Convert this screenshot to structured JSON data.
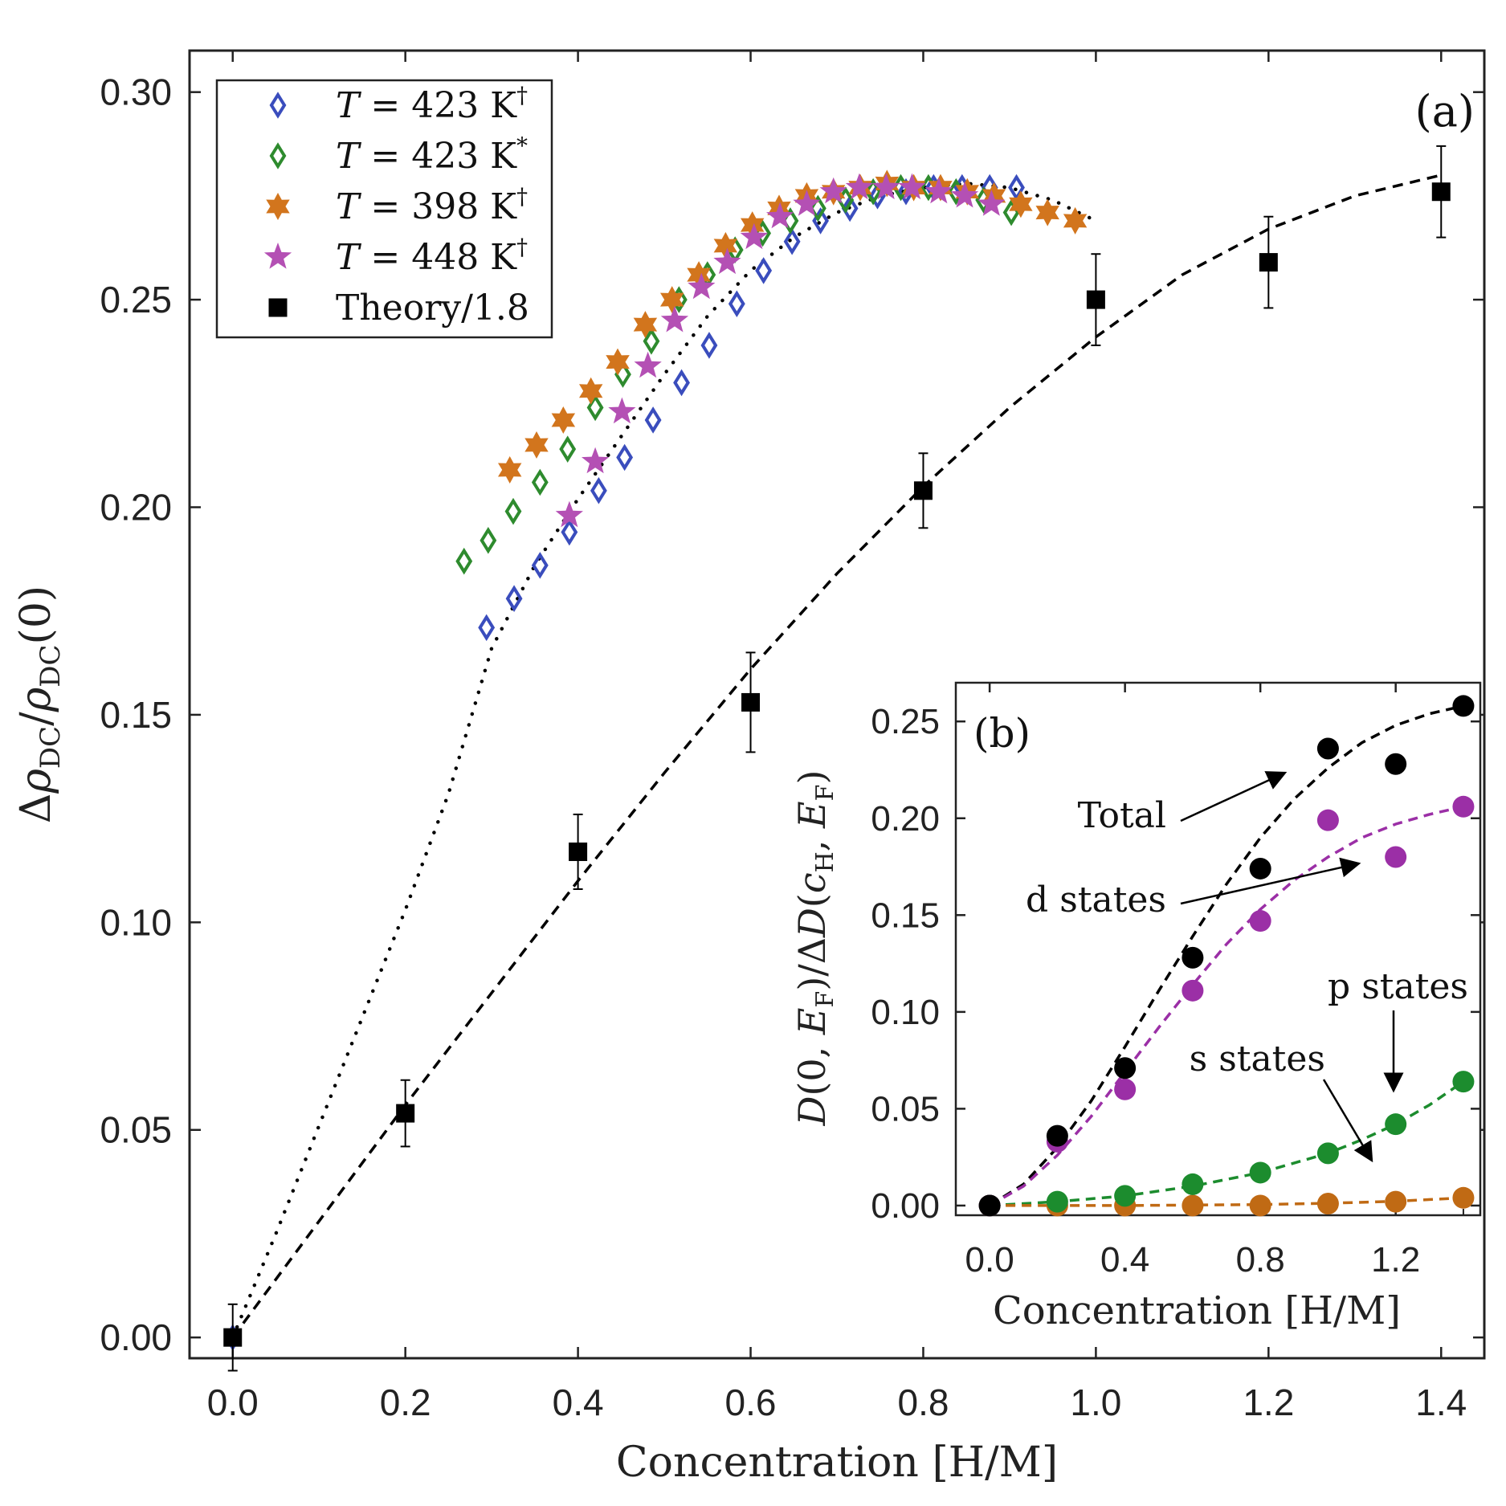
{
  "chart_data": [
    {
      "panel": "(a)",
      "type": "scatter",
      "xlabel": "Concentration [H/M]",
      "ylabel": "Δρ_DC/ρ_DC(0)",
      "xlim": [
        -0.05,
        1.45
      ],
      "ylim": [
        -0.005,
        0.31
      ],
      "xticks": [
        "0.0",
        "0.2",
        "0.4",
        "0.6",
        "0.8",
        "1.0",
        "1.2",
        "1.4"
      ],
      "yticks": [
        "0.00",
        "0.05",
        "0.10",
        "0.15",
        "0.20",
        "0.25",
        "0.30"
      ],
      "legend_position": "top-left",
      "series": [
        {
          "name": "T = 423 K†",
          "legend_main": "T = 423 K",
          "legend_sup": "†",
          "marker": "diamond-open",
          "color": "#3a4dbd",
          "x": [
            0.0,
            0.294,
            0.326,
            0.356,
            0.39,
            0.424,
            0.454,
            0.487,
            0.52,
            0.552,
            0.584,
            0.615,
            0.648,
            0.681,
            0.715,
            0.747,
            0.78,
            0.812,
            0.845,
            0.877,
            0.908
          ],
          "y": [
            0.0,
            0.171,
            0.178,
            0.186,
            0.194,
            0.204,
            0.212,
            0.221,
            0.23,
            0.239,
            0.249,
            0.257,
            0.264,
            0.269,
            0.272,
            0.275,
            0.276,
            0.277,
            0.277,
            0.277,
            0.277
          ]
        },
        {
          "name": "T = 423 K*",
          "legend_main": "T = 423 K",
          "legend_sup": "*",
          "marker": "diamond-open",
          "color": "#2e8b2e",
          "x": [
            0.268,
            0.296,
            0.325,
            0.356,
            0.388,
            0.42,
            0.452,
            0.485,
            0.517,
            0.55,
            0.582,
            0.614,
            0.646,
            0.678,
            0.71,
            0.742,
            0.774,
            0.806,
            0.838,
            0.87,
            0.902
          ],
          "y": [
            0.187,
            0.192,
            0.199,
            0.206,
            0.214,
            0.224,
            0.232,
            0.24,
            0.25,
            0.256,
            0.262,
            0.266,
            0.269,
            0.272,
            0.274,
            0.276,
            0.277,
            0.277,
            0.276,
            0.274,
            0.271
          ]
        },
        {
          "name": "T = 398 K†",
          "legend_main": "T = 398 K",
          "legend_sup": "†",
          "marker": "hexagram",
          "color": "#d2751d",
          "x": [
            0.321,
            0.352,
            0.383,
            0.415,
            0.446,
            0.478,
            0.509,
            0.54,
            0.571,
            0.602,
            0.633,
            0.665,
            0.696,
            0.727,
            0.758,
            0.789,
            0.82,
            0.851,
            0.882,
            0.913,
            0.944,
            0.976
          ],
          "y": [
            0.209,
            0.215,
            0.221,
            0.228,
            0.235,
            0.244,
            0.25,
            0.256,
            0.263,
            0.268,
            0.272,
            0.275,
            0.276,
            0.277,
            0.278,
            0.277,
            0.277,
            0.276,
            0.275,
            0.273,
            0.271,
            0.269
          ]
        },
        {
          "name": "T = 448 K†",
          "legend_main": "T = 448 K",
          "legend_sup": "†",
          "marker": "star",
          "color": "#b450b4",
          "x": [
            0.39,
            0.42,
            0.451,
            0.481,
            0.512,
            0.543,
            0.573,
            0.604,
            0.634,
            0.665,
            0.696,
            0.726,
            0.757,
            0.787,
            0.818,
            0.848,
            0.879
          ],
          "y": [
            0.198,
            0.211,
            0.223,
            0.234,
            0.245,
            0.253,
            0.259,
            0.265,
            0.27,
            0.273,
            0.276,
            0.277,
            0.277,
            0.277,
            0.276,
            0.275,
            0.273
          ]
        },
        {
          "name": "Theory/1.8",
          "legend_main": "Theory/1.8",
          "legend_sup": "",
          "marker": "square-filled",
          "color": "#000000",
          "x": [
            0.0,
            0.2,
            0.4,
            0.6,
            0.8,
            1.0,
            1.2,
            1.4
          ],
          "y": [
            0.0,
            0.054,
            0.117,
            0.153,
            0.204,
            0.25,
            0.259,
            0.276
          ],
          "yerr": [
            0.008,
            0.008,
            0.009,
            0.012,
            0.009,
            0.011,
            0.011,
            0.011
          ]
        }
      ],
      "fits": [
        {
          "name": "dotted fit (experiment)",
          "style": "dotted",
          "color": "#000000",
          "x": [
            0.0,
            0.05,
            0.1,
            0.15,
            0.2,
            0.25,
            0.3,
            0.35,
            0.4,
            0.45,
            0.5,
            0.55,
            0.6,
            0.65,
            0.7,
            0.75,
            0.8,
            0.85,
            0.9,
            0.95,
            1.0
          ],
          "y": [
            0.0,
            0.025,
            0.051,
            0.077,
            0.103,
            0.131,
            0.166,
            0.186,
            0.202,
            0.217,
            0.232,
            0.246,
            0.257,
            0.265,
            0.271,
            0.275,
            0.277,
            0.278,
            0.277,
            0.274,
            0.269
          ]
        },
        {
          "name": "dashed fit (theory)",
          "style": "dashed",
          "color": "#000000",
          "x": [
            0.0,
            0.1,
            0.2,
            0.3,
            0.4,
            0.5,
            0.6,
            0.7,
            0.8,
            0.9,
            1.0,
            1.1,
            1.2,
            1.3,
            1.4
          ],
          "y": [
            0.0,
            0.028,
            0.056,
            0.083,
            0.11,
            0.136,
            0.161,
            0.184,
            0.205,
            0.224,
            0.241,
            0.256,
            0.267,
            0.275,
            0.28
          ]
        }
      ]
    },
    {
      "panel": "(b)",
      "type": "scatter",
      "xlabel": "Concentration [H/M]",
      "ylabel": "D(0, E_F)/ΔD(c_H, E_F)",
      "xlim": [
        -0.1,
        1.45
      ],
      "ylim": [
        -0.005,
        0.27
      ],
      "xticks": [
        "0.0",
        "0.4",
        "0.8",
        "1.2"
      ],
      "yticks": [
        "0.00",
        "0.05",
        "0.10",
        "0.15",
        "0.20",
        "0.25"
      ],
      "series": [
        {
          "name": "Total",
          "color": "#000000",
          "x": [
            0.0,
            0.2,
            0.4,
            0.6,
            0.8,
            1.0,
            1.2,
            1.4
          ],
          "y": [
            0.0,
            0.036,
            0.071,
            0.128,
            0.174,
            0.236,
            0.228,
            0.258
          ]
        },
        {
          "name": "d states",
          "color": "#9b2fa6",
          "x": [
            0.0,
            0.2,
            0.4,
            0.6,
            0.8,
            1.0,
            1.2,
            1.4
          ],
          "y": [
            0.0,
            0.033,
            0.06,
            0.111,
            0.147,
            0.199,
            0.18,
            0.206
          ]
        },
        {
          "name": "p states",
          "color": "#1c8c2e",
          "x": [
            0.0,
            0.2,
            0.4,
            0.6,
            0.8,
            1.0,
            1.2,
            1.4
          ],
          "y": [
            0.0,
            0.002,
            0.005,
            0.011,
            0.017,
            0.027,
            0.042,
            0.064
          ]
        },
        {
          "name": "s states",
          "color": "#c06a14",
          "x": [
            0.0,
            0.2,
            0.4,
            0.6,
            0.8,
            1.0,
            1.2,
            1.4
          ],
          "y": [
            0.0,
            0.0,
            0.0,
            0.0,
            0.0,
            0.001,
            0.002,
            0.004
          ]
        }
      ],
      "fits": [
        {
          "name": "Total fit",
          "color": "#000000",
          "x": [
            0.0,
            0.1,
            0.2,
            0.3,
            0.4,
            0.5,
            0.6,
            0.7,
            0.8,
            0.9,
            1.0,
            1.1,
            1.2,
            1.3,
            1.4
          ],
          "y": [
            0.0,
            0.011,
            0.03,
            0.054,
            0.082,
            0.111,
            0.139,
            0.166,
            0.19,
            0.21,
            0.226,
            0.239,
            0.248,
            0.254,
            0.258
          ]
        },
        {
          "name": "d states fit",
          "color": "#9b2fa6",
          "x": [
            0.0,
            0.1,
            0.2,
            0.3,
            0.4,
            0.5,
            0.6,
            0.7,
            0.8,
            0.9,
            1.0,
            1.1,
            1.2,
            1.3,
            1.4
          ],
          "y": [
            0.0,
            0.01,
            0.026,
            0.046,
            0.069,
            0.092,
            0.114,
            0.135,
            0.153,
            0.168,
            0.18,
            0.19,
            0.197,
            0.202,
            0.206
          ]
        },
        {
          "name": "p states fit",
          "color": "#1c8c2e",
          "x": [
            0.0,
            0.2,
            0.4,
            0.6,
            0.8,
            1.0,
            1.1,
            1.2,
            1.3,
            1.4
          ],
          "y": [
            0.0,
            0.002,
            0.005,
            0.01,
            0.017,
            0.027,
            0.034,
            0.042,
            0.052,
            0.064
          ]
        },
        {
          "name": "s states fit",
          "color": "#c06a14",
          "x": [
            0.0,
            0.4,
            0.8,
            1.0,
            1.2,
            1.4
          ],
          "y": [
            0.0,
            0.0,
            0.0005,
            0.0012,
            0.0022,
            0.004
          ]
        }
      ],
      "annotations": [
        {
          "key": "total",
          "text": "Total"
        },
        {
          "key": "d",
          "text": "d states"
        },
        {
          "key": "p",
          "text": "p states"
        },
        {
          "key": "s",
          "text": "s states"
        }
      ]
    }
  ],
  "labels": {
    "panel_a": "(a)",
    "panel_b": "(b)",
    "a_xlabel": "Concentration [H/M]",
    "b_xlabel": "Concentration [H/M]",
    "ann_total": "Total",
    "ann_d": "d states",
    "ann_p": "p states",
    "ann_s": "s states"
  }
}
